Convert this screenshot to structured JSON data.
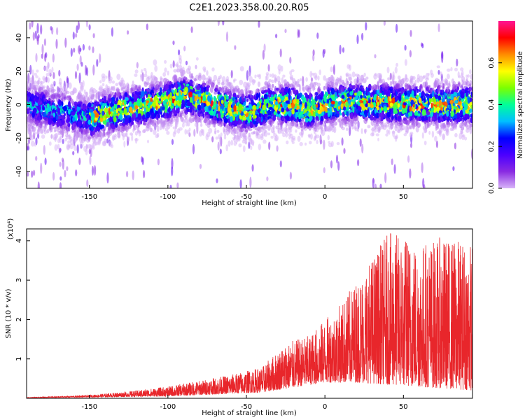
{
  "title": "C2E1.2023.358.00.20.R05",
  "chart_data": [
    {
      "type": "heatmap",
      "xlabel": "Height of straight line (km)",
      "ylabel": "Frequency (Hz)",
      "xlim": [
        -190,
        94
      ],
      "ylim": [
        -50,
        50
      ],
      "xticks": [
        -150,
        -100,
        -50,
        0,
        50
      ],
      "yticks": [
        -40,
        -20,
        0,
        20,
        40
      ],
      "colorbar": {
        "label": "Normalized spectral amplitude",
        "range": [
          0.0,
          0.8
        ],
        "ticks": [
          0.0,
          0.2,
          0.4,
          0.6
        ],
        "colormap": [
          "#d8b4f8",
          "#8a2be2",
          "#4b00ff",
          "#0000ff",
          "#00bfff",
          "#00ff99",
          "#7cff00",
          "#ffff00",
          "#ff8c00",
          "#ff0000",
          "#ff1493"
        ]
      },
      "band_center": [
        [
          -190,
          0
        ],
        [
          -150,
          -8
        ],
        [
          -130,
          -3
        ],
        [
          -100,
          2
        ],
        [
          -90,
          6
        ],
        [
          -70,
          0
        ],
        [
          -50,
          -5
        ],
        [
          -35,
          0
        ],
        [
          -20,
          0
        ],
        [
          -10,
          -3
        ],
        [
          0,
          0
        ],
        [
          20,
          2
        ],
        [
          50,
          0
        ],
        [
          94,
          0
        ]
      ],
      "band_halfwidth_hz": 9,
      "peak_amplitude": 0.75,
      "grid": false
    },
    {
      "type": "line",
      "xlabel": "Height of straight line (km)",
      "ylabel": "SNR (10 * v/v)",
      "yscale_label": "(x10⁴)",
      "xlim": [
        -190,
        94
      ],
      "ylim": [
        0,
        4.3
      ],
      "xticks": [
        -150,
        -100,
        -50,
        0,
        50
      ],
      "yticks": [
        1,
        2,
        3,
        4
      ],
      "color": "#e8262b",
      "envelope": [
        [
          -190,
          0.02
        ],
        [
          -150,
          0.08
        ],
        [
          -120,
          0.2
        ],
        [
          -100,
          0.3
        ],
        [
          -80,
          0.45
        ],
        [
          -60,
          0.6
        ],
        [
          -40,
          0.8
        ],
        [
          -25,
          1.4
        ],
        [
          -10,
          1.6
        ],
        [
          0,
          2.0
        ],
        [
          10,
          2.4
        ],
        [
          20,
          3.0
        ],
        [
          30,
          3.6
        ],
        [
          40,
          4.2
        ],
        [
          50,
          4.2
        ],
        [
          60,
          4.0
        ],
        [
          75,
          4.1
        ],
        [
          94,
          4.0
        ]
      ],
      "baseline": [
        [
          -190,
          0.01
        ],
        [
          -100,
          0.05
        ],
        [
          -40,
          0.15
        ],
        [
          0,
          0.4
        ],
        [
          20,
          0.4
        ],
        [
          94,
          0.2
        ]
      ],
      "grid": false
    }
  ]
}
